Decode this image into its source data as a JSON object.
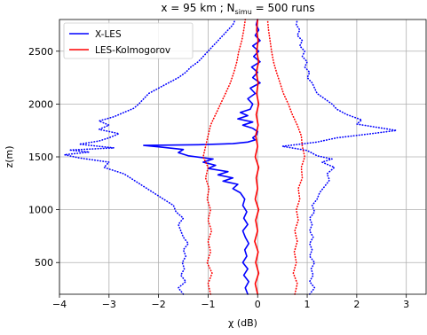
{
  "chart_data": {
    "type": "line",
    "title_pre": "x = 95 km ; N",
    "title_sub": "simu",
    "title_post": " = 500 runs",
    "xlabel": "χ (dB)",
    "ylabel": "z(m)",
    "xlim": [
      -4,
      3.4
    ],
    "ylim": [
      200,
      2800
    ],
    "xticks": [
      "-4",
      "-3",
      "-2",
      "-1",
      "0",
      "1",
      "2",
      "3"
    ],
    "yticks": [
      "500",
      "1000",
      "1500",
      "2000",
      "2500"
    ],
    "grid": true,
    "legend_position": "top-left",
    "legend": [
      "X-LES",
      "LES-Kolmogorov"
    ],
    "colors": {
      "X-LES": "#0000ff",
      "LES-Kolmogorov": "#ff0000"
    },
    "series": [
      {
        "name": "X-LES",
        "style": "solid",
        "color": "#0000ff",
        "points": [
          [
            -0.2,
            200
          ],
          [
            -0.25,
            260
          ],
          [
            -0.18,
            320
          ],
          [
            -0.28,
            380
          ],
          [
            -0.2,
            440
          ],
          [
            -0.3,
            500
          ],
          [
            -0.22,
            560
          ],
          [
            -0.26,
            620
          ],
          [
            -0.18,
            680
          ],
          [
            -0.25,
            740
          ],
          [
            -0.3,
            800
          ],
          [
            -0.2,
            860
          ],
          [
            -0.28,
            920
          ],
          [
            -0.22,
            980
          ],
          [
            -0.3,
            1040
          ],
          [
            -0.26,
            1100
          ],
          [
            -0.35,
            1160
          ],
          [
            -0.5,
            1200
          ],
          [
            -0.4,
            1240
          ],
          [
            -0.7,
            1270
          ],
          [
            -0.5,
            1300
          ],
          [
            -0.8,
            1330
          ],
          [
            -0.6,
            1360
          ],
          [
            -1.0,
            1390
          ],
          [
            -0.85,
            1420
          ],
          [
            -1.1,
            1450
          ],
          [
            -0.9,
            1480
          ],
          [
            -1.4,
            1510
          ],
          [
            -1.6,
            1540
          ],
          [
            -1.5,
            1570
          ],
          [
            -2.0,
            1595
          ],
          [
            -2.3,
            1608
          ],
          [
            -1.2,
            1615
          ],
          [
            -0.5,
            1625
          ],
          [
            -0.2,
            1640
          ],
          [
            -0.05,
            1660
          ],
          [
            -0.1,
            1680
          ],
          [
            -0.02,
            1710
          ],
          [
            0.0,
            1740
          ],
          [
            -0.1,
            1770
          ],
          [
            -0.3,
            1800
          ],
          [
            -0.1,
            1830
          ],
          [
            -0.4,
            1860
          ],
          [
            -0.2,
            1890
          ],
          [
            -0.35,
            1920
          ],
          [
            -0.15,
            1950
          ],
          [
            -0.1,
            2000
          ],
          [
            -0.2,
            2050
          ],
          [
            -0.05,
            2100
          ],
          [
            -0.15,
            2150
          ],
          [
            0.05,
            2200
          ],
          [
            -0.1,
            2250
          ],
          [
            0.0,
            2300
          ],
          [
            -0.12,
            2350
          ],
          [
            0.05,
            2400
          ],
          [
            -0.08,
            2450
          ],
          [
            0.02,
            2500
          ],
          [
            -0.1,
            2550
          ],
          [
            0.05,
            2600
          ],
          [
            -0.05,
            2650
          ],
          [
            0.02,
            2700
          ],
          [
            -0.03,
            2750
          ],
          [
            0.0,
            2800
          ]
        ]
      },
      {
        "name": "X-LES lower bound",
        "style": "dotted",
        "color": "#0000ff",
        "points": [
          [
            -1.5,
            200
          ],
          [
            -1.6,
            260
          ],
          [
            -1.45,
            320
          ],
          [
            -1.55,
            380
          ],
          [
            -1.48,
            440
          ],
          [
            -1.52,
            500
          ],
          [
            -1.45,
            560
          ],
          [
            -1.5,
            620
          ],
          [
            -1.4,
            680
          ],
          [
            -1.5,
            740
          ],
          [
            -1.55,
            800
          ],
          [
            -1.6,
            860
          ],
          [
            -1.5,
            920
          ],
          [
            -1.65,
            980
          ],
          [
            -1.7,
            1040
          ],
          [
            -1.9,
            1100
          ],
          [
            -2.1,
            1160
          ],
          [
            -2.3,
            1220
          ],
          [
            -2.5,
            1280
          ],
          [
            -2.7,
            1340
          ],
          [
            -3.1,
            1400
          ],
          [
            -3.0,
            1450
          ],
          [
            -3.6,
            1490
          ],
          [
            -3.9,
            1520
          ],
          [
            -3.4,
            1545
          ],
          [
            -3.8,
            1565
          ],
          [
            -2.9,
            1585
          ],
          [
            -3.2,
            1600
          ],
          [
            -3.6,
            1620
          ],
          [
            -3.2,
            1650
          ],
          [
            -3.0,
            1680
          ],
          [
            -2.8,
            1720
          ],
          [
            -3.2,
            1760
          ],
          [
            -3.0,
            1800
          ],
          [
            -3.2,
            1840
          ],
          [
            -2.9,
            1880
          ],
          [
            -2.7,
            1920
          ],
          [
            -2.5,
            1960
          ],
          [
            -2.4,
            2000
          ],
          [
            -2.3,
            2050
          ],
          [
            -2.2,
            2100
          ],
          [
            -2.0,
            2150
          ],
          [
            -1.8,
            2200
          ],
          [
            -1.6,
            2250
          ],
          [
            -1.45,
            2300
          ],
          [
            -1.35,
            2350
          ],
          [
            -1.2,
            2400
          ],
          [
            -1.1,
            2450
          ],
          [
            -1.0,
            2500
          ],
          [
            -0.9,
            2550
          ],
          [
            -0.8,
            2600
          ],
          [
            -0.7,
            2650
          ],
          [
            -0.6,
            2700
          ],
          [
            -0.5,
            2750
          ],
          [
            -0.45,
            2800
          ]
        ]
      },
      {
        "name": "X-LES upper bound",
        "style": "dotted",
        "color": "#0000ff",
        "points": [
          [
            1.05,
            200
          ],
          [
            1.15,
            260
          ],
          [
            1.05,
            320
          ],
          [
            1.12,
            380
          ],
          [
            1.08,
            440
          ],
          [
            1.15,
            500
          ],
          [
            1.05,
            560
          ],
          [
            1.1,
            620
          ],
          [
            1.05,
            680
          ],
          [
            1.12,
            740
          ],
          [
            1.05,
            800
          ],
          [
            1.1,
            860
          ],
          [
            1.05,
            920
          ],
          [
            1.15,
            980
          ],
          [
            1.1,
            1040
          ],
          [
            1.2,
            1100
          ],
          [
            1.25,
            1160
          ],
          [
            1.35,
            1220
          ],
          [
            1.45,
            1280
          ],
          [
            1.4,
            1340
          ],
          [
            1.55,
            1400
          ],
          [
            1.3,
            1450
          ],
          [
            1.5,
            1480
          ],
          [
            1.2,
            1510
          ],
          [
            1.0,
            1560
          ],
          [
            0.5,
            1600
          ],
          [
            1.2,
            1640
          ],
          [
            1.6,
            1680
          ],
          [
            2.3,
            1720
          ],
          [
            2.8,
            1750
          ],
          [
            2.4,
            1780
          ],
          [
            2.0,
            1810
          ],
          [
            2.1,
            1850
          ],
          [
            1.8,
            1900
          ],
          [
            1.6,
            1950
          ],
          [
            1.5,
            2000
          ],
          [
            1.35,
            2050
          ],
          [
            1.2,
            2100
          ],
          [
            1.15,
            2150
          ],
          [
            1.1,
            2200
          ],
          [
            1.0,
            2250
          ],
          [
            1.05,
            2300
          ],
          [
            0.95,
            2350
          ],
          [
            1.0,
            2400
          ],
          [
            0.9,
            2450
          ],
          [
            0.95,
            2500
          ],
          [
            0.85,
            2550
          ],
          [
            0.9,
            2600
          ],
          [
            0.8,
            2650
          ],
          [
            0.85,
            2700
          ],
          [
            0.78,
            2750
          ],
          [
            0.8,
            2800
          ]
        ]
      },
      {
        "name": "LES-Kolmogorov",
        "style": "solid",
        "color": "#ff0000",
        "points": [
          [
            0.0,
            200
          ],
          [
            -0.05,
            300
          ],
          [
            0.02,
            400
          ],
          [
            -0.04,
            500
          ],
          [
            0.01,
            600
          ],
          [
            -0.06,
            700
          ],
          [
            0.0,
            800
          ],
          [
            -0.04,
            900
          ],
          [
            0.02,
            1000
          ],
          [
            -0.05,
            1100
          ],
          [
            0.0,
            1200
          ],
          [
            -0.03,
            1300
          ],
          [
            0.02,
            1400
          ],
          [
            -0.05,
            1500
          ],
          [
            0.0,
            1600
          ],
          [
            -0.04,
            1700
          ],
          [
            0.01,
            1800
          ],
          [
            -0.03,
            1900
          ],
          [
            0.02,
            2000
          ],
          [
            -0.02,
            2100
          ],
          [
            0.01,
            2200
          ],
          [
            -0.03,
            2300
          ],
          [
            0.02,
            2400
          ],
          [
            -0.02,
            2500
          ],
          [
            0.01,
            2600
          ],
          [
            -0.02,
            2700
          ],
          [
            0.0,
            2800
          ]
        ]
      },
      {
        "name": "LES-Kolmogorov lower bound",
        "style": "dotted",
        "color": "#ff0000",
        "points": [
          [
            -0.95,
            200
          ],
          [
            -1.0,
            300
          ],
          [
            -0.92,
            400
          ],
          [
            -1.02,
            500
          ],
          [
            -0.95,
            600
          ],
          [
            -1.0,
            700
          ],
          [
            -0.93,
            800
          ],
          [
            -1.0,
            900
          ],
          [
            -0.95,
            1000
          ],
          [
            -1.02,
            1100
          ],
          [
            -0.98,
            1200
          ],
          [
            -1.05,
            1300
          ],
          [
            -1.0,
            1400
          ],
          [
            -1.1,
            1500
          ],
          [
            -1.05,
            1600
          ],
          [
            -1.0,
            1700
          ],
          [
            -0.95,
            1800
          ],
          [
            -0.85,
            1900
          ],
          [
            -0.75,
            2000
          ],
          [
            -0.65,
            2100
          ],
          [
            -0.55,
            2200
          ],
          [
            -0.48,
            2300
          ],
          [
            -0.42,
            2400
          ],
          [
            -0.38,
            2500
          ],
          [
            -0.32,
            2600
          ],
          [
            -0.28,
            2700
          ],
          [
            -0.25,
            2800
          ]
        ]
      },
      {
        "name": "LES-Kolmogorov upper bound",
        "style": "dotted",
        "color": "#ff0000",
        "points": [
          [
            0.75,
            200
          ],
          [
            0.8,
            300
          ],
          [
            0.72,
            400
          ],
          [
            0.78,
            500
          ],
          [
            0.74,
            600
          ],
          [
            0.8,
            700
          ],
          [
            0.75,
            800
          ],
          [
            0.82,
            900
          ],
          [
            0.78,
            1000
          ],
          [
            0.85,
            1100
          ],
          [
            0.82,
            1200
          ],
          [
            0.9,
            1300
          ],
          [
            0.88,
            1400
          ],
          [
            0.95,
            1500
          ],
          [
            0.9,
            1600
          ],
          [
            0.88,
            1700
          ],
          [
            0.8,
            1800
          ],
          [
            0.7,
            1900
          ],
          [
            0.62,
            2000
          ],
          [
            0.52,
            2100
          ],
          [
            0.45,
            2200
          ],
          [
            0.38,
            2300
          ],
          [
            0.32,
            2400
          ],
          [
            0.28,
            2500
          ],
          [
            0.25,
            2600
          ],
          [
            0.22,
            2700
          ],
          [
            0.2,
            2800
          ]
        ]
      }
    ]
  }
}
